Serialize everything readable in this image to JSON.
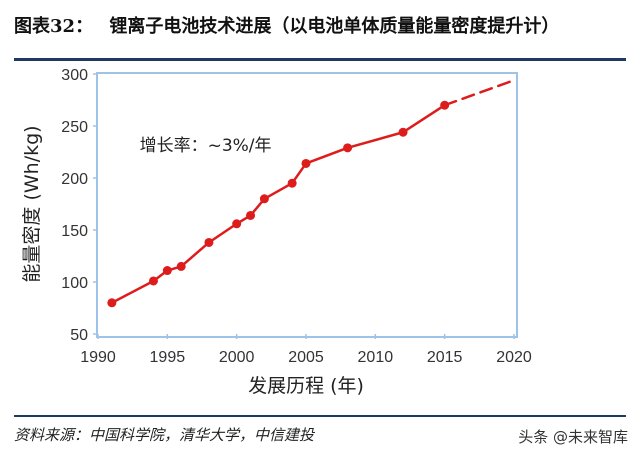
{
  "header": {
    "title_prefix": "图表",
    "title_num": "32",
    "title_colon": "：",
    "title_text": "锂离子电池技术进展（以电池单体质量能量密度提升计）"
  },
  "chart_data": {
    "type": "line",
    "title": "",
    "xlabel": "发展历程 (年)",
    "ylabel": "能量密度 (Wh/kg)",
    "xlim": [
      1990,
      2020
    ],
    "ylim": [
      50,
      300
    ],
    "xticks": [
      1990,
      1995,
      2000,
      2005,
      2010,
      2015,
      2020
    ],
    "yticks": [
      50,
      100,
      150,
      200,
      250,
      300
    ],
    "grid": false,
    "series": [
      {
        "x": [
          1991,
          1994,
          1995,
          1996,
          1998,
          2000,
          2001,
          2002,
          2004,
          2005,
          2008,
          2012,
          2015
        ],
        "y": [
          80,
          101,
          111,
          115,
          138,
          156,
          164,
          180,
          195,
          214,
          229,
          244,
          270
        ],
        "color": "#dd1c1c",
        "style": "solid-with-markers"
      },
      {
        "x": [
          2015,
          2020
        ],
        "y": [
          270,
          294
        ],
        "color": "#dd1c1c",
        "style": "dashed"
      }
    ],
    "annotation": {
      "text": "增长率：~3%/年",
      "x": 1993,
      "y": 226
    }
  },
  "footer": {
    "source": "资料来源：中国科学院，清华大学，中信建投",
    "watermark": "头条 @未来智库"
  }
}
